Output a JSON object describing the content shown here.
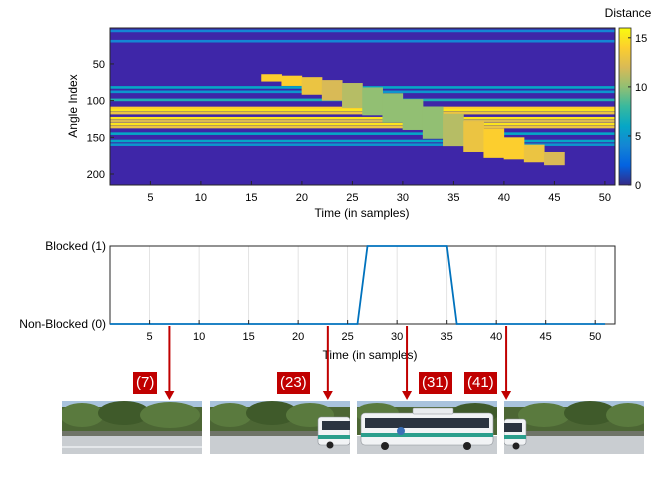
{
  "figure": {
    "heatmap": {
      "colorbar_title": "Distance",
      "colorbar_ticks": [
        "0",
        "5",
        "10",
        "15"
      ],
      "ylabel": "Angle Index",
      "xlabel": "Time (in samples)",
      "yticks": [
        "50",
        "100",
        "150",
        "200"
      ],
      "xticks": [
        "5",
        "10",
        "15",
        "20",
        "25",
        "30",
        "35",
        "40",
        "45",
        "50"
      ]
    },
    "lineplot": {
      "xlabel": "Time (in samples)",
      "ytick_top": "Blocked (1)",
      "ytick_bottom": "Non-Blocked (0)",
      "xticks": [
        "5",
        "10",
        "15",
        "20",
        "25",
        "30",
        "35",
        "40",
        "45",
        "50"
      ]
    },
    "snapshots": [
      {
        "label": "(7)",
        "scene": "empty-road"
      },
      {
        "label": "(23)",
        "scene": "bus-entering"
      },
      {
        "label": "(31)",
        "scene": "bus-full"
      },
      {
        "label": "(41)",
        "scene": "bus-leaving"
      }
    ],
    "colors": {
      "line": "#0072bd",
      "arrow": "#c00000",
      "badge": "#c00000",
      "colormap": "parula"
    }
  },
  "chart_data": [
    {
      "type": "heatmap",
      "x_range": [
        1,
        51
      ],
      "y_range": [
        1,
        215
      ],
      "y_reversed": true,
      "color_range": [
        0,
        16
      ],
      "colormap": "parula",
      "background_value": 1,
      "horizontal_bands": [
        {
          "angle_index": 5,
          "value": 4
        },
        {
          "angle_index": 19,
          "value": 4
        },
        {
          "angle_index": 82,
          "value": 6
        },
        {
          "angle_index": 88,
          "value": 5
        },
        {
          "angle_index": 99,
          "value": 7
        },
        {
          "angle_index": 110,
          "value": 14
        },
        {
          "angle_index": 113,
          "value": 15
        },
        {
          "angle_index": 117,
          "value": 13
        },
        {
          "angle_index": 124,
          "value": 15
        },
        {
          "angle_index": 128,
          "value": 12
        },
        {
          "angle_index": 132,
          "value": 15
        },
        {
          "angle_index": 136,
          "value": 13
        },
        {
          "angle_index": 145,
          "value": 6
        },
        {
          "angle_index": 155,
          "value": 6
        },
        {
          "angle_index": 160,
          "value": 5
        }
      ],
      "blockage_region": [
        {
          "t": 17,
          "from": 64,
          "to": 74,
          "value": 14
        },
        {
          "t": 19,
          "from": 66,
          "to": 80,
          "value": 14
        },
        {
          "t": 21,
          "from": 68,
          "to": 92,
          "value": 13
        },
        {
          "t": 23,
          "from": 72,
          "to": 100,
          "value": 12
        },
        {
          "t": 25,
          "from": 76,
          "to": 110,
          "value": 11
        },
        {
          "t": 27,
          "from": 82,
          "to": 120,
          "value": 10
        },
        {
          "t": 29,
          "from": 90,
          "to": 130,
          "value": 10
        },
        {
          "t": 31,
          "from": 98,
          "to": 140,
          "value": 10
        },
        {
          "t": 33,
          "from": 108,
          "to": 152,
          "value": 10
        },
        {
          "t": 35,
          "from": 118,
          "to": 162,
          "value": 11
        },
        {
          "t": 37,
          "from": 128,
          "to": 170,
          "value": 13
        },
        {
          "t": 39,
          "from": 138,
          "to": 178,
          "value": 14
        },
        {
          "t": 41,
          "from": 150,
          "to": 180,
          "value": 14
        },
        {
          "t": 43,
          "from": 160,
          "to": 184,
          "value": 13
        },
        {
          "t": 45,
          "from": 170,
          "to": 188,
          "value": 12
        }
      ]
    },
    {
      "type": "line",
      "x": [
        1,
        26,
        27,
        35,
        36,
        51
      ],
      "y": [
        0,
        0,
        1,
        1,
        0,
        0
      ],
      "xlim": [
        1,
        52
      ],
      "ylim": [
        0,
        1
      ],
      "grid": "vertical",
      "arrows_at": [
        7,
        23,
        31,
        41
      ]
    }
  ]
}
